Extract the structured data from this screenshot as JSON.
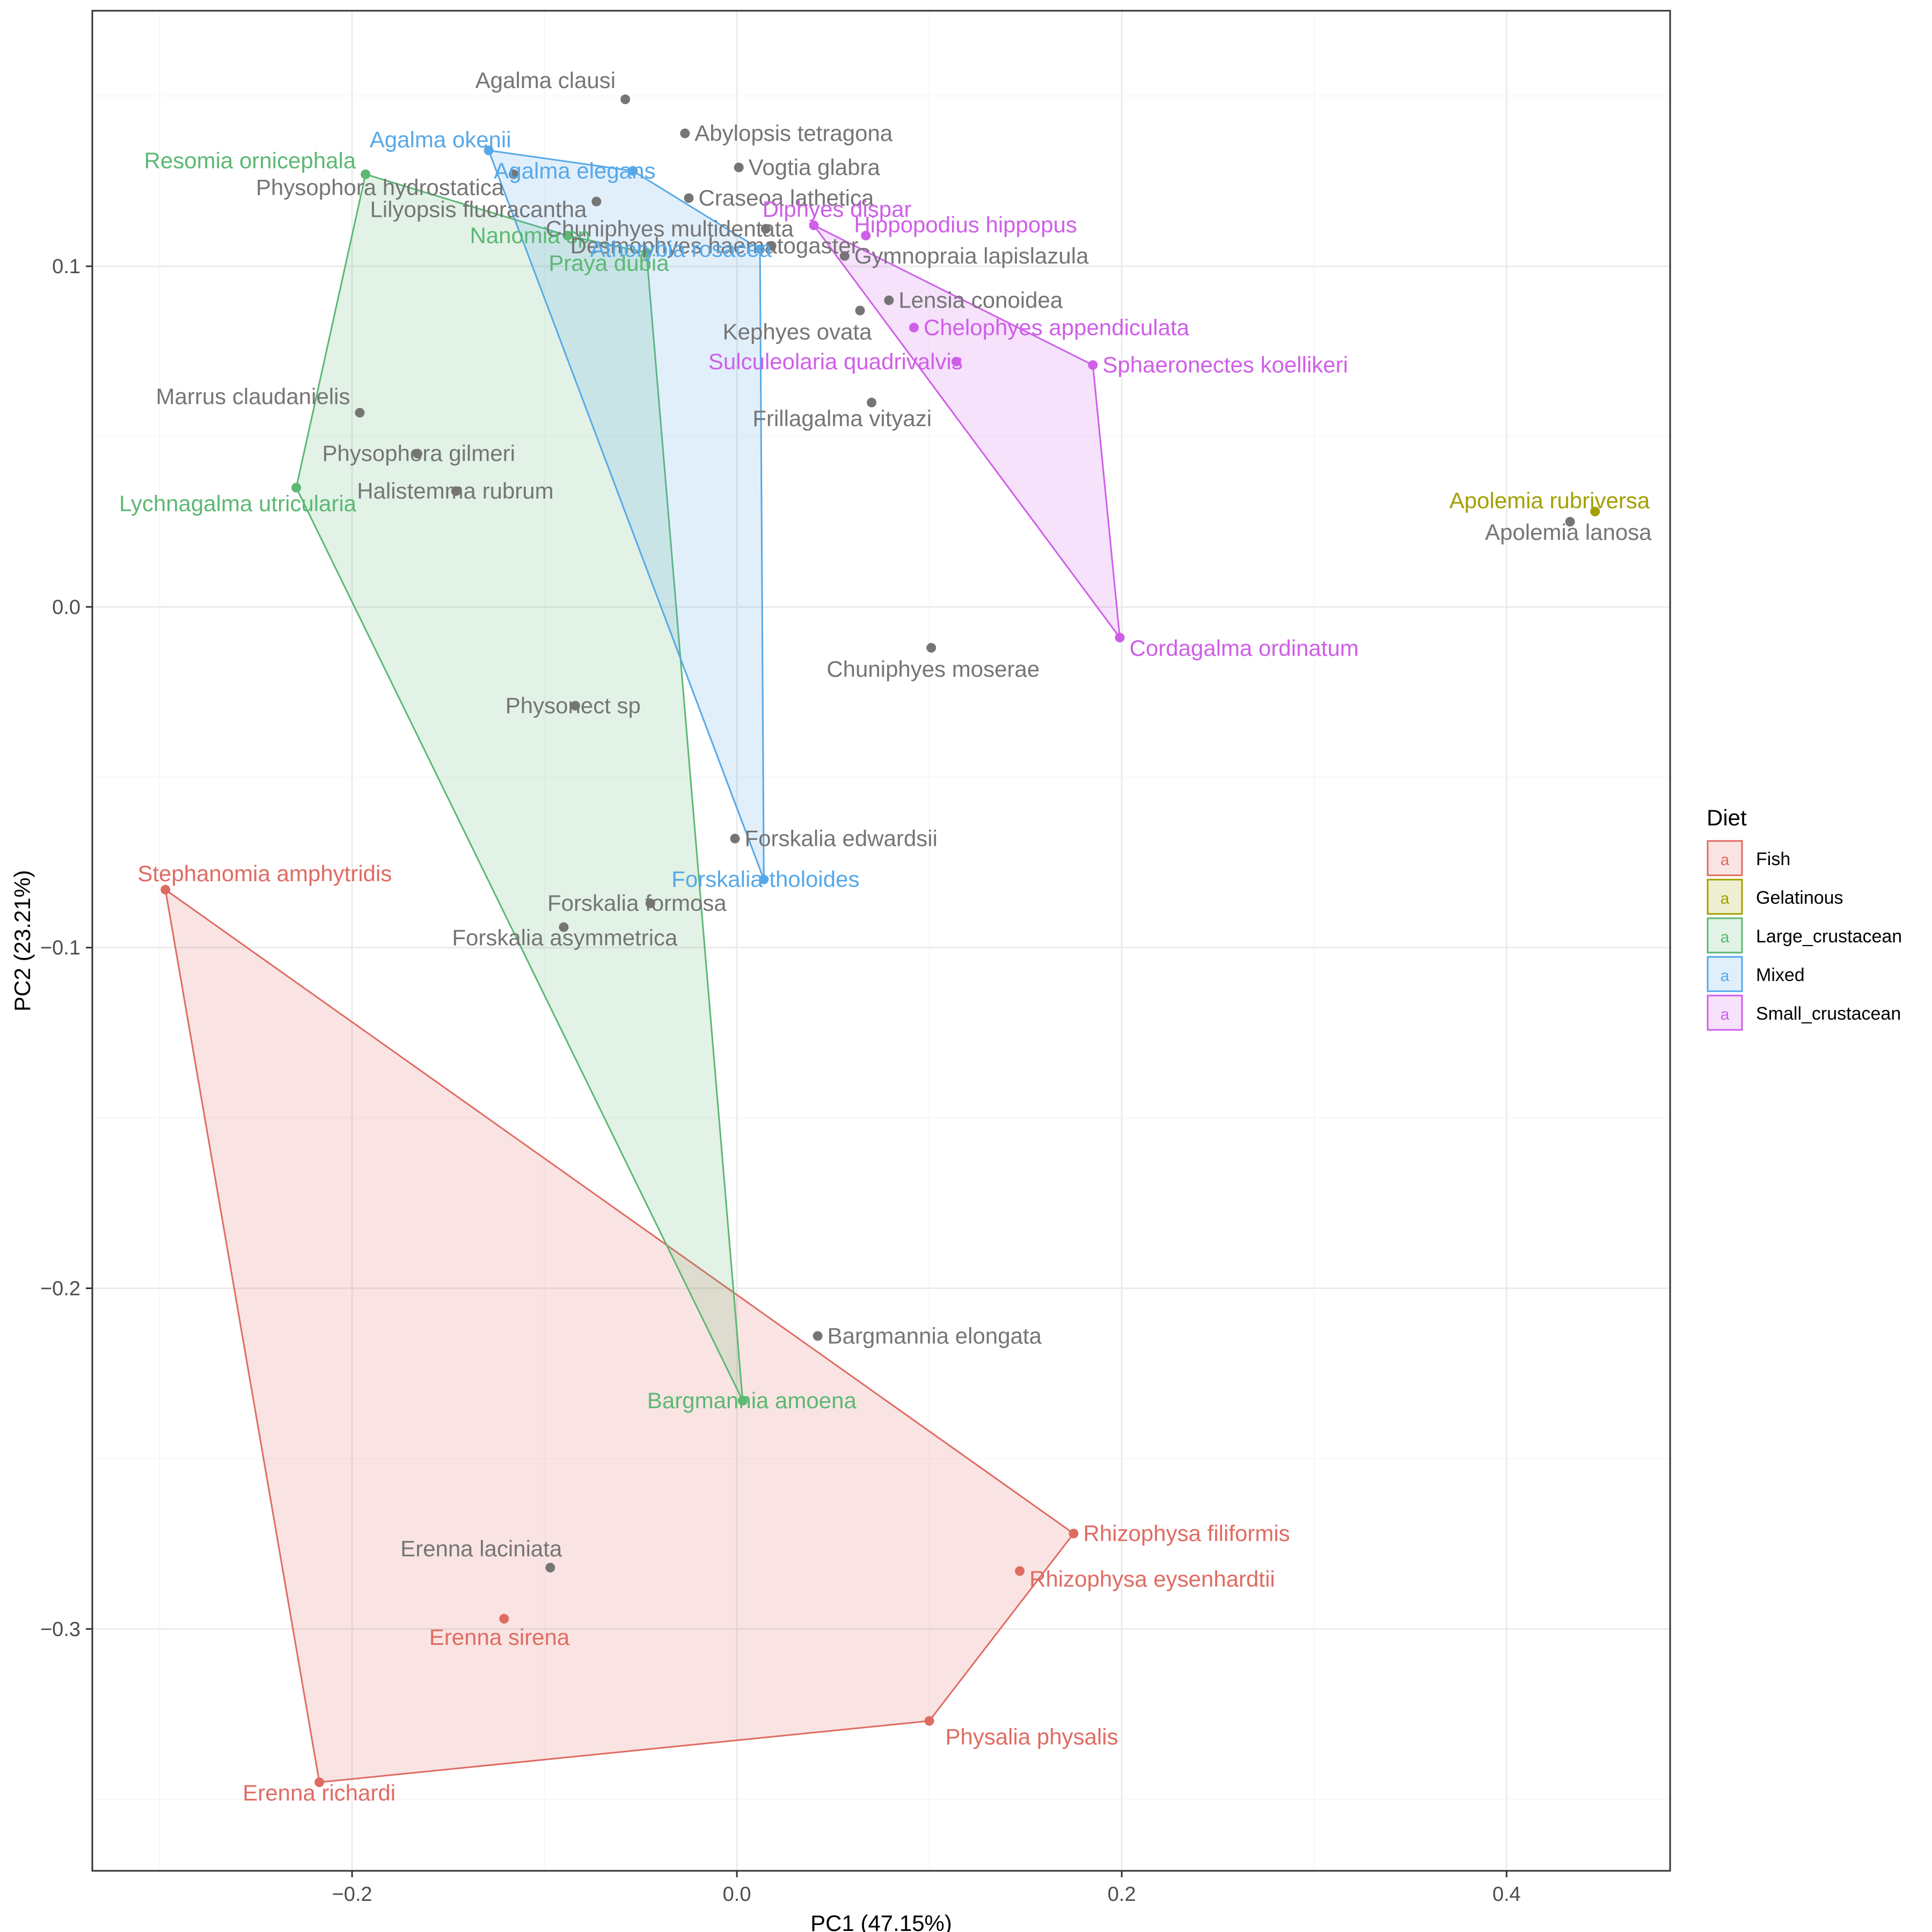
{
  "chart_data": {
    "type": "scatter",
    "xlabel": "PC1 (47.15%)",
    "ylabel": "PC2 (23.21%)",
    "xlim": [
      -0.335,
      0.485
    ],
    "ylim": [
      -0.371,
      0.175
    ],
    "x_ticks": [
      {
        "value": -0.2,
        "label": "−0.2"
      },
      {
        "value": 0.0,
        "label": "0.0"
      },
      {
        "value": 0.2,
        "label": "0.2"
      },
      {
        "value": 0.4,
        "label": "0.4"
      }
    ],
    "y_ticks": [
      {
        "value": 0.1,
        "label": "0.1"
      },
      {
        "value": 0.0,
        "label": "0.0"
      },
      {
        "value": -0.1,
        "label": "−0.1"
      },
      {
        "value": -0.2,
        "label": "−0.2"
      },
      {
        "value": -0.3,
        "label": "−0.3"
      }
    ],
    "grid": true,
    "legend": {
      "title": "Diet",
      "position": "right",
      "key_glyph": "a",
      "entries": [
        {
          "name": "Fish",
          "color": "#F8766D"
        },
        {
          "name": "Gelatinous",
          "color": "#A3A500"
        },
        {
          "name": "Large_crustacean",
          "color": "#00BF7D"
        },
        {
          "name": "Mixed",
          "color": "#00B0F6"
        },
        {
          "name": "Small_crustacean",
          "color": "#E76BF3"
        }
      ]
    },
    "colors": {
      "Fish": "#e06b62",
      "Gelatinous": "#a3a000",
      "Large_crustacean": "#5cb873",
      "Mixed": "#56a8e8",
      "Small_crustacean": "#cf5ee8",
      "Unassigned": "#757575"
    },
    "hulls": [
      {
        "group": "Fish",
        "points": [
          [
            -0.297,
            -0.083
          ],
          [
            -0.217,
            -0.345
          ],
          [
            0.1,
            -0.327
          ],
          [
            0.175,
            -0.272
          ]
        ]
      },
      {
        "group": "Large_crustacean",
        "points": [
          [
            -0.193,
            0.127
          ],
          [
            -0.229,
            0.035
          ],
          [
            0.003,
            -0.233
          ],
          [
            -0.047,
            0.104
          ],
          [
            -0.088,
            0.109
          ]
        ]
      },
      {
        "group": "Mixed",
        "points": [
          [
            -0.129,
            0.134
          ],
          [
            -0.054,
            0.128
          ],
          [
            0.012,
            0.105
          ],
          [
            0.014,
            -0.08
          ]
        ]
      },
      {
        "group": "Small_crustacean",
        "points": [
          [
            0.04,
            0.112
          ],
          [
            0.185,
            0.071
          ],
          [
            0.199,
            -0.009
          ]
        ]
      }
    ],
    "points": [
      {
        "name": "Agalma clausi",
        "x": -0.058,
        "y": 0.149,
        "group": "Unassigned"
      },
      {
        "name": "Abylopsis tetragona",
        "x": -0.027,
        "y": 0.139,
        "group": "Unassigned"
      },
      {
        "name": "Agalma okenii",
        "x": -0.129,
        "y": 0.134,
        "group": "Mixed"
      },
      {
        "name": "Agalma elegans",
        "x": -0.054,
        "y": 0.128,
        "group": "Mixed"
      },
      {
        "name": "Vogtia glabra",
        "x": 0.001,
        "y": 0.129,
        "group": "Unassigned"
      },
      {
        "name": "Resomia ornicephala",
        "x": -0.193,
        "y": 0.127,
        "group": "Large_crustacean"
      },
      {
        "name": "Physophora hydrostatica",
        "x": -0.116,
        "y": 0.127,
        "group": "Unassigned"
      },
      {
        "name": "Craseoa lathetica",
        "x": -0.025,
        "y": 0.12,
        "group": "Unassigned"
      },
      {
        "name": "Lilyopsis fluoracantha",
        "x": -0.073,
        "y": 0.119,
        "group": "Unassigned"
      },
      {
        "name": "Diphyes dispar",
        "x": 0.04,
        "y": 0.112,
        "group": "Small_crustacean"
      },
      {
        "name": "Chuniphyes multidentata",
        "x": 0.015,
        "y": 0.111,
        "group": "Unassigned"
      },
      {
        "name": "Hippopodius hippopus",
        "x": 0.067,
        "y": 0.109,
        "group": "Small_crustacean"
      },
      {
        "name": "Nanomia sp",
        "x": -0.088,
        "y": 0.109,
        "group": "Large_crustacean"
      },
      {
        "name": "Praya dubia",
        "x": -0.047,
        "y": 0.104,
        "group": "Large_crustacean"
      },
      {
        "name": "Desmophyes haematogaster",
        "x": 0.018,
        "y": 0.106,
        "group": "Unassigned"
      },
      {
        "name": "Athorybia rosacea",
        "x": 0.012,
        "y": 0.105,
        "group": "Mixed"
      },
      {
        "name": "Gymnopraia lapislazula",
        "x": 0.056,
        "y": 0.103,
        "group": "Unassigned"
      },
      {
        "name": "Lensia conoidea",
        "x": 0.079,
        "y": 0.09,
        "group": "Unassigned"
      },
      {
        "name": "Kephyes ovata",
        "x": 0.064,
        "y": 0.087,
        "group": "Unassigned"
      },
      {
        "name": "Chelophyes appendiculata",
        "x": 0.092,
        "y": 0.082,
        "group": "Small_crustacean"
      },
      {
        "name": "Sulculeolaria quadrivalvis",
        "x": 0.114,
        "y": 0.072,
        "group": "Small_crustacean"
      },
      {
        "name": "Sphaeronectes koellikeri",
        "x": 0.185,
        "y": 0.071,
        "group": "Small_crustacean"
      },
      {
        "name": "Frillagalma vityazi",
        "x": 0.07,
        "y": 0.06,
        "group": "Unassigned"
      },
      {
        "name": "Marrus claudanielis",
        "x": -0.196,
        "y": 0.057,
        "group": "Unassigned"
      },
      {
        "name": "Physophora gilmeri",
        "x": -0.166,
        "y": 0.045,
        "group": "Unassigned"
      },
      {
        "name": "Halistemma rubrum",
        "x": -0.146,
        "y": 0.034,
        "group": "Unassigned"
      },
      {
        "name": "Lychnagalma utricularia",
        "x": -0.229,
        "y": 0.035,
        "group": "Large_crustacean"
      },
      {
        "name": "Apolemia rubriversa",
        "x": 0.446,
        "y": 0.028,
        "group": "Gelatinous"
      },
      {
        "name": "Apolemia lanosa",
        "x": 0.433,
        "y": 0.025,
        "group": "Unassigned"
      },
      {
        "name": "Cordagalma ordinatum",
        "x": 0.199,
        "y": -0.009,
        "group": "Small_crustacean"
      },
      {
        "name": "Chuniphyes moserae",
        "x": 0.101,
        "y": -0.012,
        "group": "Unassigned"
      },
      {
        "name": "Physonect sp",
        "x": -0.084,
        "y": -0.029,
        "group": "Unassigned"
      },
      {
        "name": "Forskalia edwardsii",
        "x": -0.001,
        "y": -0.068,
        "group": "Unassigned"
      },
      {
        "name": "Forskalia tholoides",
        "x": 0.014,
        "y": -0.08,
        "group": "Mixed"
      },
      {
        "name": "Stephanomia amphytridis",
        "x": -0.297,
        "y": -0.083,
        "group": "Fish"
      },
      {
        "name": "Forskalia formosa",
        "x": -0.045,
        "y": -0.087,
        "group": "Unassigned"
      },
      {
        "name": "Forskalia asymmetrica",
        "x": -0.09,
        "y": -0.094,
        "group": "Unassigned"
      },
      {
        "name": "Bargmannia elongata",
        "x": 0.042,
        "y": -0.214,
        "group": "Unassigned"
      },
      {
        "name": "Bargmannia amoena",
        "x": 0.003,
        "y": -0.233,
        "group": "Large_crustacean"
      },
      {
        "name": "Rhizophysa filiformis",
        "x": 0.175,
        "y": -0.272,
        "group": "Fish"
      },
      {
        "name": "Rhizophysa eysenhardtii",
        "x": 0.147,
        "y": -0.283,
        "group": "Fish"
      },
      {
        "name": "Erenna laciniata",
        "x": -0.097,
        "y": -0.282,
        "group": "Unassigned"
      },
      {
        "name": "Erenna sirena",
        "x": -0.121,
        "y": -0.297,
        "group": "Fish"
      },
      {
        "name": "Physalia physalis",
        "x": 0.1,
        "y": -0.327,
        "group": "Fish"
      },
      {
        "name": "Erenna richardi",
        "x": -0.217,
        "y": -0.345,
        "group": "Fish"
      }
    ]
  }
}
